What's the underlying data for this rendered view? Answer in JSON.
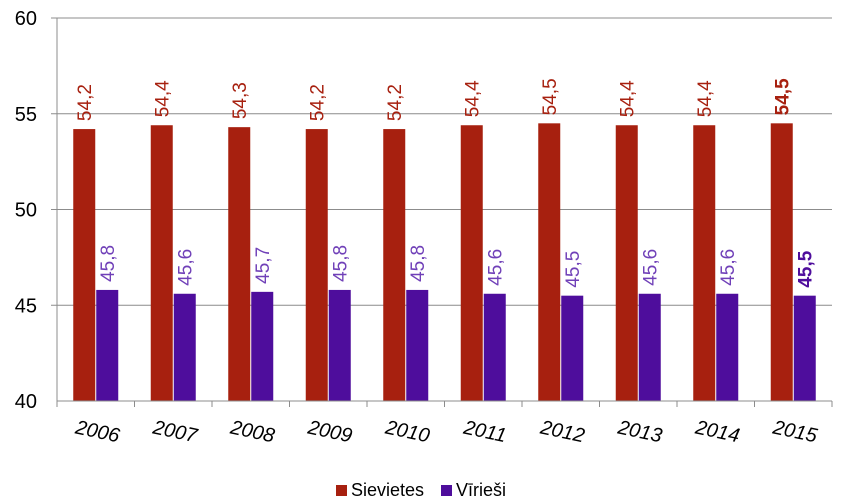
{
  "chart_data": {
    "type": "bar",
    "categories": [
      "2006",
      "2007",
      "2008",
      "2009",
      "2010",
      "2011",
      "2012",
      "2013",
      "2014",
      "2015"
    ],
    "series": [
      {
        "name": "Sievietes",
        "color": "#a7200f",
        "values": [
          54.2,
          54.4,
          54.3,
          54.2,
          54.2,
          54.4,
          54.5,
          54.4,
          54.4,
          54.5
        ],
        "labels": [
          "54,2",
          "54,4",
          "54,3",
          "54,2",
          "54,2",
          "54,4",
          "54,5",
          "54,4",
          "54,4",
          "54,5"
        ]
      },
      {
        "name": "Vīrieši",
        "color": "#4e0d9c",
        "label_color": "#7040b8",
        "values": [
          45.8,
          45.6,
          45.7,
          45.8,
          45.8,
          45.6,
          45.5,
          45.6,
          45.6,
          45.5
        ],
        "labels": [
          "45,8",
          "45,6",
          "45,7",
          "45,8",
          "45,8",
          "45,6",
          "45,5",
          "45,6",
          "45,6",
          "45,5"
        ]
      }
    ],
    "bold_last_label": true,
    "ylim": [
      40,
      60
    ],
    "yticks": [
      "40",
      "45",
      "50",
      "55",
      "60"
    ],
    "grid": true,
    "legend_position": "bottom",
    "title": "",
    "xlabel": "",
    "ylabel": ""
  }
}
